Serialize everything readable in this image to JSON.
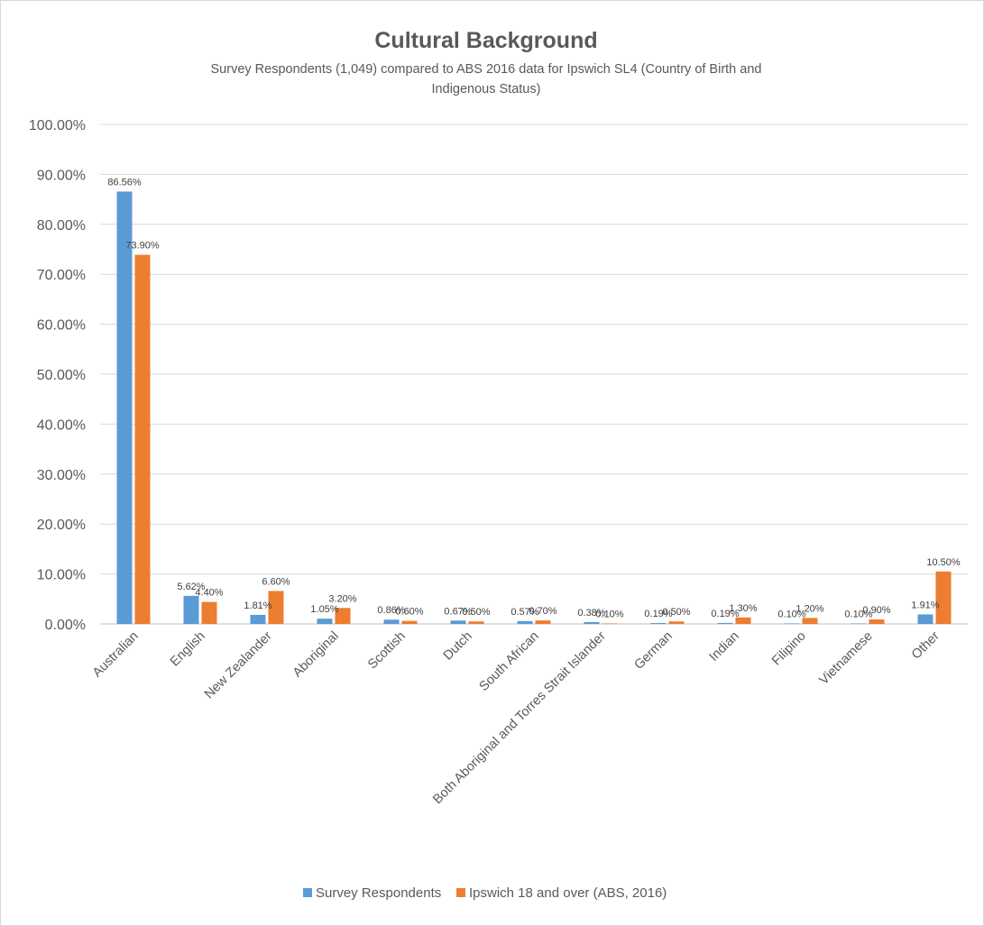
{
  "chart_data": {
    "type": "bar",
    "title": "Cultural Background",
    "subtitle_lines": [
      "Survey Respondents (1,049) compared to ABS 2016 data for Ipswich SL4 (Country of Birth and",
      "Indigenous Status)"
    ],
    "categories": [
      "Australian",
      "English",
      "New Zealander",
      "Aboriginal",
      "Scottish",
      "Dutch",
      "South African",
      "Both Aboriginal and Torres Strait Islander",
      "German",
      "Indian",
      "Filipino",
      "Vietnamese",
      "Other"
    ],
    "series": [
      {
        "name": "Survey Respondents",
        "color": "#5B9BD5",
        "values": [
          86.56,
          5.62,
          1.81,
          1.05,
          0.86,
          0.67,
          0.57,
          0.38,
          0.19,
          0.19,
          0.1,
          0.1,
          1.91
        ],
        "labels": [
          "86.56%",
          "5.62%",
          "1.81%",
          "1.05%",
          "0.86%",
          "0.67%",
          "0.57%",
          "0.38%",
          "0.19%",
          "0.19%",
          "0.10%",
          "0.10%",
          "1.91%"
        ]
      },
      {
        "name": "Ipswich 18 and over (ABS, 2016)",
        "color": "#ED7D31",
        "values": [
          73.9,
          4.4,
          6.6,
          3.2,
          0.6,
          0.5,
          0.7,
          0.1,
          0.5,
          1.3,
          1.2,
          0.9,
          10.5
        ],
        "labels": [
          "73.90%",
          "4.40%",
          "6.60%",
          "3.20%",
          "0.60%",
          "0.50%",
          "0.70%",
          "0.10%",
          "0.50%",
          "1.30%",
          "1.20%",
          "0.90%",
          "10.50%"
        ]
      }
    ],
    "ylim": [
      0,
      100
    ],
    "yticks": [
      0,
      10,
      20,
      30,
      40,
      50,
      60,
      70,
      80,
      90,
      100
    ],
    "ytick_labels": [
      "0.00%",
      "10.00%",
      "20.00%",
      "30.00%",
      "40.00%",
      "50.00%",
      "60.00%",
      "70.00%",
      "80.00%",
      "90.00%",
      "100.00%"
    ],
    "grid": true,
    "legend_position": "bottom"
  }
}
